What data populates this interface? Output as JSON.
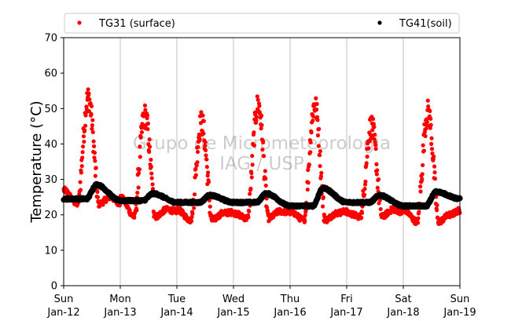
{
  "chart_data": {
    "type": "scatter",
    "ylabel": "Temperature (°C)",
    "ylim": [
      0,
      70
    ],
    "yticks": [
      "0",
      "10",
      "20",
      "30",
      "40",
      "50",
      "60",
      "70"
    ],
    "xlim": [
      "2014-01-12",
      "2014-01-19"
    ],
    "xticks": [
      {
        "day": "Sun",
        "date": "Jan-12"
      },
      {
        "day": "Mon",
        "date": "Jan-13"
      },
      {
        "day": "Tue",
        "date": "Jan-14"
      },
      {
        "day": "Wed",
        "date": "Jan-15"
      },
      {
        "day": "Thu",
        "date": "Jan-16"
      },
      {
        "day": "Fri",
        "date": "Jan-17"
      },
      {
        "day": "Sat",
        "date": "Jan-18"
      },
      {
        "day": "Sun",
        "date": "Jan-19"
      }
    ],
    "grid": "vertical",
    "legend_position": "top",
    "watermark": [
      "Grupo de Micrometeorologia",
      "IAG / USP"
    ],
    "series": [
      {
        "name": "TG31 (surface)",
        "color": "#ff0000",
        "days": [
          {
            "date": "Jan-12",
            "min": 23,
            "max": 53
          },
          {
            "date": "Jan-13",
            "min": 19.5,
            "max": 48
          },
          {
            "date": "Jan-14",
            "min": 18.5,
            "max": 46
          },
          {
            "date": "Jan-15",
            "min": 19,
            "max": 51
          },
          {
            "date": "Jan-16",
            "min": 18.5,
            "max": 51
          },
          {
            "date": "Jan-17",
            "min": 19.5,
            "max": 45
          },
          {
            "date": "Jan-18",
            "min": 18,
            "max": 49
          }
        ],
        "end_value": 20.5
      },
      {
        "name": "TG41(soil)",
        "color": "#000000",
        "days": [
          {
            "date": "Jan-12",
            "min": 24.5,
            "max": 28.5
          },
          {
            "date": "Jan-13",
            "min": 24,
            "max": 26
          },
          {
            "date": "Jan-14",
            "min": 23.5,
            "max": 25.5
          },
          {
            "date": "Jan-15",
            "min": 23.5,
            "max": 26
          },
          {
            "date": "Jan-16",
            "min": 22.5,
            "max": 27.5
          },
          {
            "date": "Jan-17",
            "min": 23.5,
            "max": 25.5
          },
          {
            "date": "Jan-18",
            "min": 22.5,
            "max": 26.5
          }
        ],
        "end_value": 24.5
      }
    ]
  }
}
